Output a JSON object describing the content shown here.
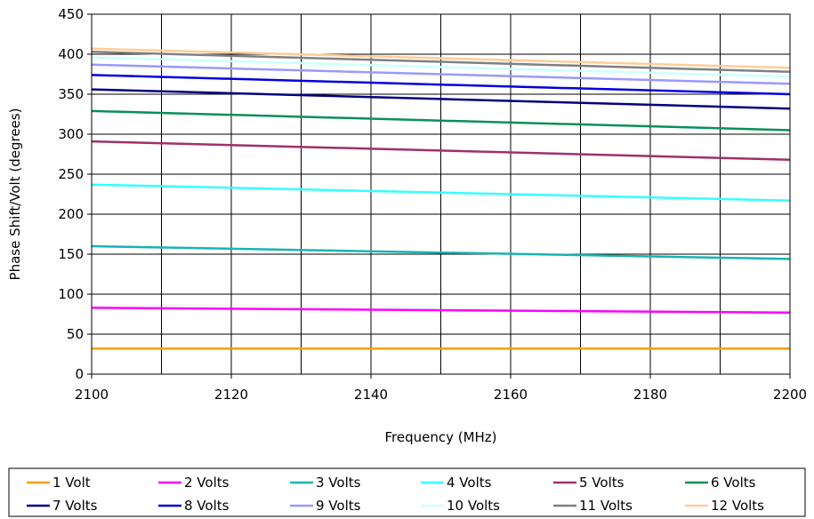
{
  "chart_data": {
    "type": "line",
    "title": "",
    "xlabel": "Frequency (MHz)",
    "ylabel": "Phase Shift/Volt (degrees)",
    "xlim": [
      2100,
      2200
    ],
    "ylim": [
      0,
      450
    ],
    "x_ticks": [
      2100,
      2120,
      2140,
      2160,
      2180,
      2200
    ],
    "y_ticks": [
      0,
      50,
      100,
      150,
      200,
      250,
      300,
      350,
      400,
      450
    ],
    "x_gridlines": [
      2100,
      2110,
      2120,
      2130,
      2140,
      2150,
      2160,
      2170,
      2180,
      2190,
      2200
    ],
    "grid": true,
    "legend_position": "bottom",
    "x": [
      2100,
      2200
    ],
    "series": [
      {
        "name": "1 Volt",
        "values": [
          32,
          32
        ],
        "color": "#f5a000"
      },
      {
        "name": "2 Volts",
        "values": [
          83,
          77
        ],
        "color": "#ff00ff"
      },
      {
        "name": "3 Volts",
        "values": [
          160,
          144
        ],
        "color": "#1ab3b3"
      },
      {
        "name": "4 Volts",
        "values": [
          237,
          217
        ],
        "color": "#33ffff"
      },
      {
        "name": "5 Volts",
        "values": [
          291,
          268
        ],
        "color": "#a0306a"
      },
      {
        "name": "6 Volts",
        "values": [
          329,
          305
        ],
        "color": "#0a8f5a"
      },
      {
        "name": "7 Volts",
        "values": [
          356,
          332
        ],
        "color": "#000080"
      },
      {
        "name": "8 Volts",
        "values": [
          374,
          350
        ],
        "color": "#0000e0"
      },
      {
        "name": "9 Volts",
        "values": [
          387,
          363
        ],
        "color": "#9999ff"
      },
      {
        "name": "10 Volts",
        "values": [
          396,
          372
        ],
        "color": "#ccffff"
      },
      {
        "name": "11 Volts",
        "values": [
          403,
          378
        ],
        "color": "#808080"
      },
      {
        "name": "12 Volts",
        "values": [
          407,
          383
        ],
        "color": "#ffcc99"
      }
    ]
  }
}
